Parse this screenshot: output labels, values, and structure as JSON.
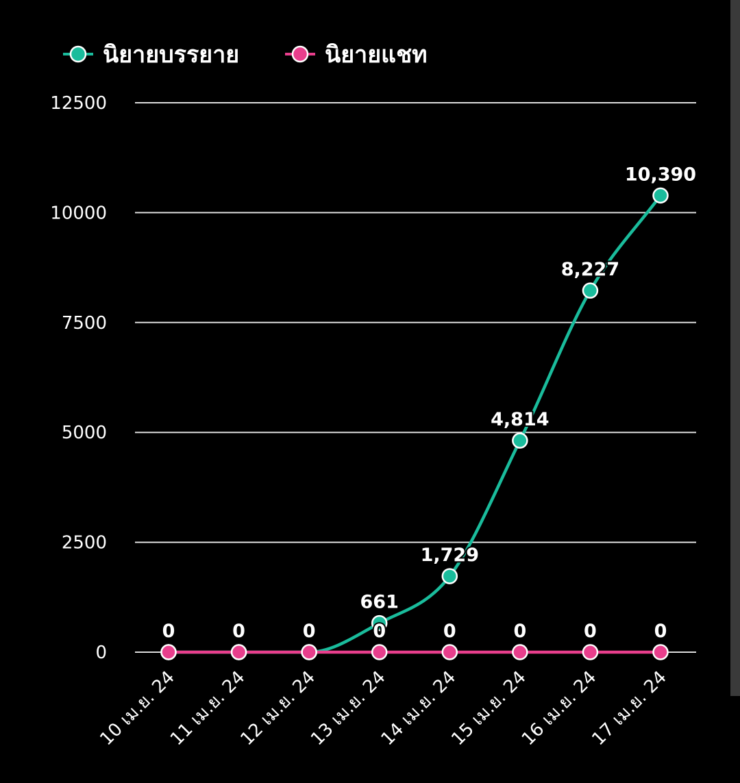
{
  "chart_data": {
    "type": "line",
    "categories": [
      "10 เม.ย. 24",
      "11 เม.ย. 24",
      "12 เม.ย. 24",
      "13 เม.ย. 24",
      "14 เม.ย. 24",
      "15 เม.ย. 24",
      "16 เม.ย. 24",
      "17 เม.ย. 24"
    ],
    "series": [
      {
        "name": "นิยายบรรยาย",
        "color": "#1abc9c",
        "values": [
          0,
          0,
          0,
          661,
          1729,
          4814,
          8227,
          10390
        ],
        "labels": [
          "0",
          "0",
          "0",
          "661",
          "1,729",
          "4,814",
          "8,227",
          "10,390"
        ]
      },
      {
        "name": "นิยายแชท",
        "color": "#e83e8c",
        "values": [
          0,
          0,
          0,
          0,
          0,
          0,
          0,
          0
        ],
        "labels": [
          "0",
          "0",
          "0",
          "0",
          "0",
          "0",
          "0",
          "0"
        ]
      }
    ],
    "yticks": [
      "0",
      "2500",
      "5000",
      "7500",
      "10000",
      "12500"
    ],
    "ylim": [
      0,
      12500
    ],
    "title": "",
    "xlabel": "",
    "ylabel": "",
    "grid": true,
    "legend_position": "top-left",
    "gridline_color": "#dddddd",
    "text_color": "#ffffff",
    "background": "#000000"
  }
}
